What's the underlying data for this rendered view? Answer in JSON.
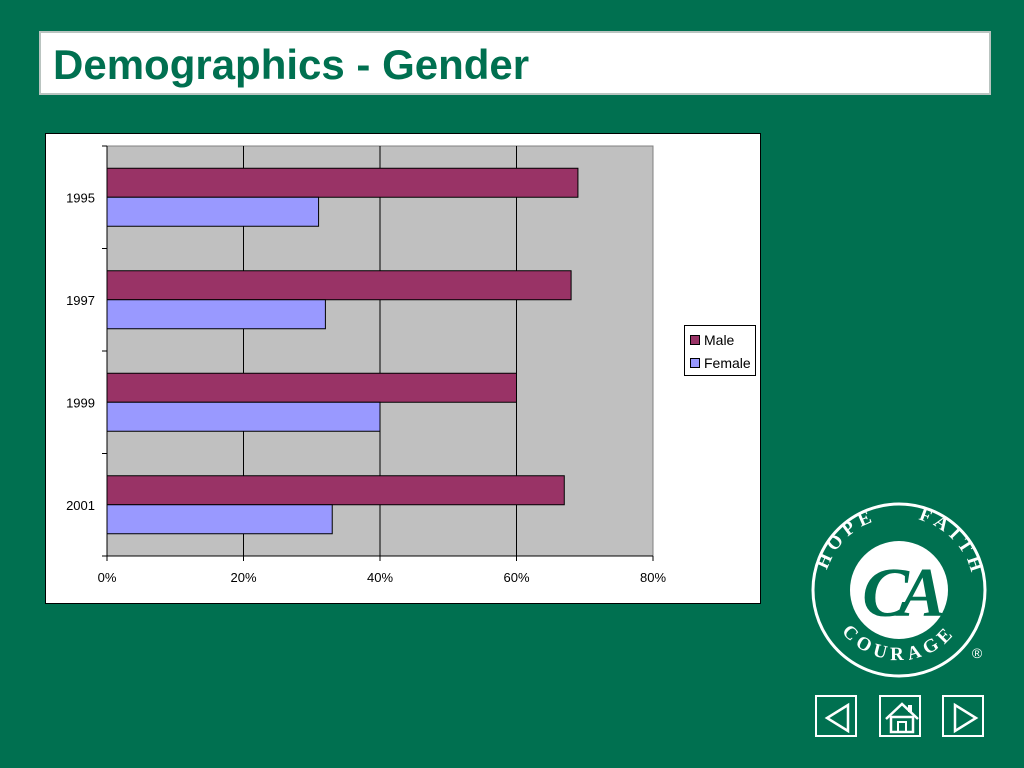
{
  "slide": {
    "title": "Demographics - Gender",
    "background_color": "#007050"
  },
  "chart_data": {
    "type": "bar",
    "orientation": "horizontal",
    "title": "",
    "categories": [
      "1995",
      "1997",
      "1999",
      "2001"
    ],
    "series": [
      {
        "name": "Male",
        "color": "#993366",
        "values": [
          69,
          68,
          60,
          67
        ]
      },
      {
        "name": "Female",
        "color": "#9999ff",
        "values": [
          31,
          32,
          40,
          33
        ]
      }
    ],
    "x_ticks": [
      "0%",
      "20%",
      "40%",
      "60%",
      "80%"
    ],
    "xlim": [
      0,
      80
    ],
    "x_unit": "%",
    "grid": true,
    "plot_background": "#c0c0c0",
    "legend_position": "right"
  },
  "logo": {
    "top_words": [
      "HOPE",
      "FAITH"
    ],
    "bottom_word": "COURAGE",
    "monogram": "CA",
    "registered_mark": "®"
  },
  "nav": {
    "icons": [
      "previous-arrow-icon",
      "home-icon",
      "next-arrow-icon"
    ]
  }
}
